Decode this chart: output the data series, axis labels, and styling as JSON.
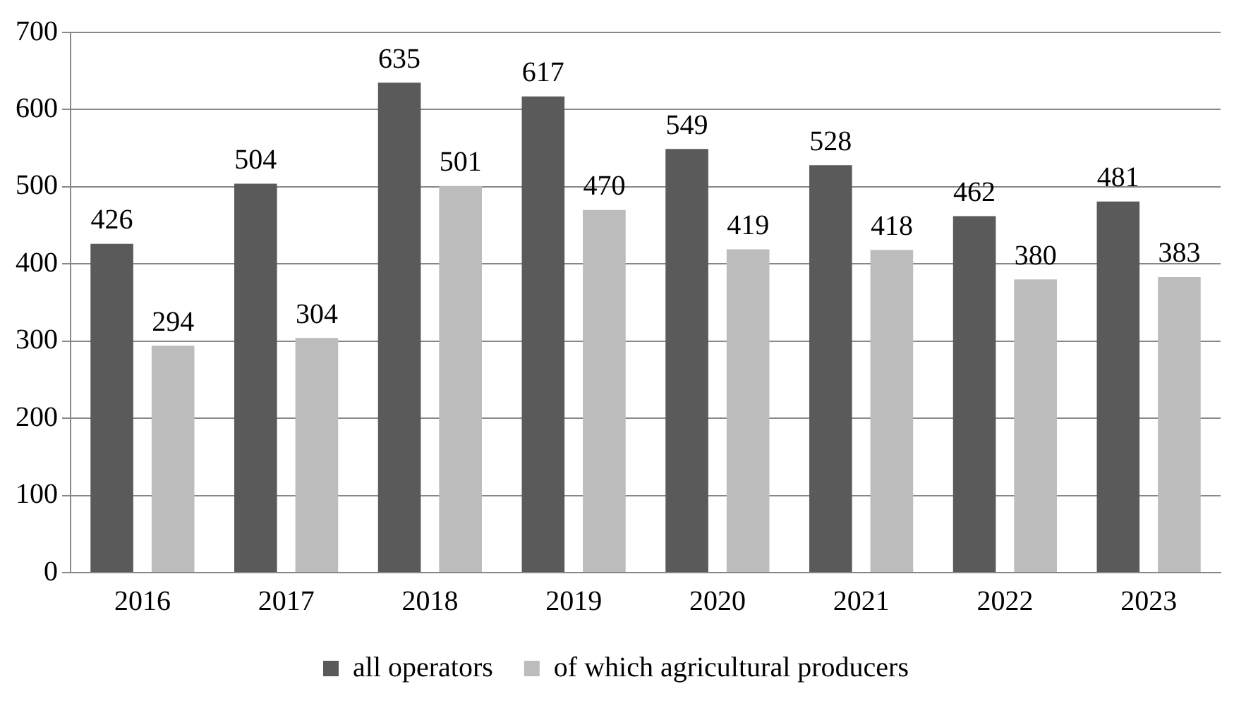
{
  "chart_data": {
    "type": "bar",
    "categories": [
      "2016",
      "2017",
      "2018",
      "2019",
      "2020",
      "2021",
      "2022",
      "2023"
    ],
    "series": [
      {
        "name": "all operators",
        "color": "#5a5a5a",
        "values": [
          426,
          504,
          635,
          617,
          549,
          528,
          462,
          481
        ]
      },
      {
        "name": "of which agricultural producers",
        "color": "#bcbcbc",
        "values": [
          294,
          304,
          501,
          470,
          419,
          418,
          380,
          383
        ]
      }
    ],
    "ylim": [
      0,
      700
    ],
    "yticks": [
      0,
      100,
      200,
      300,
      400,
      500,
      600,
      700
    ],
    "grid": "y",
    "legend": "bottom",
    "data_labels": true
  }
}
